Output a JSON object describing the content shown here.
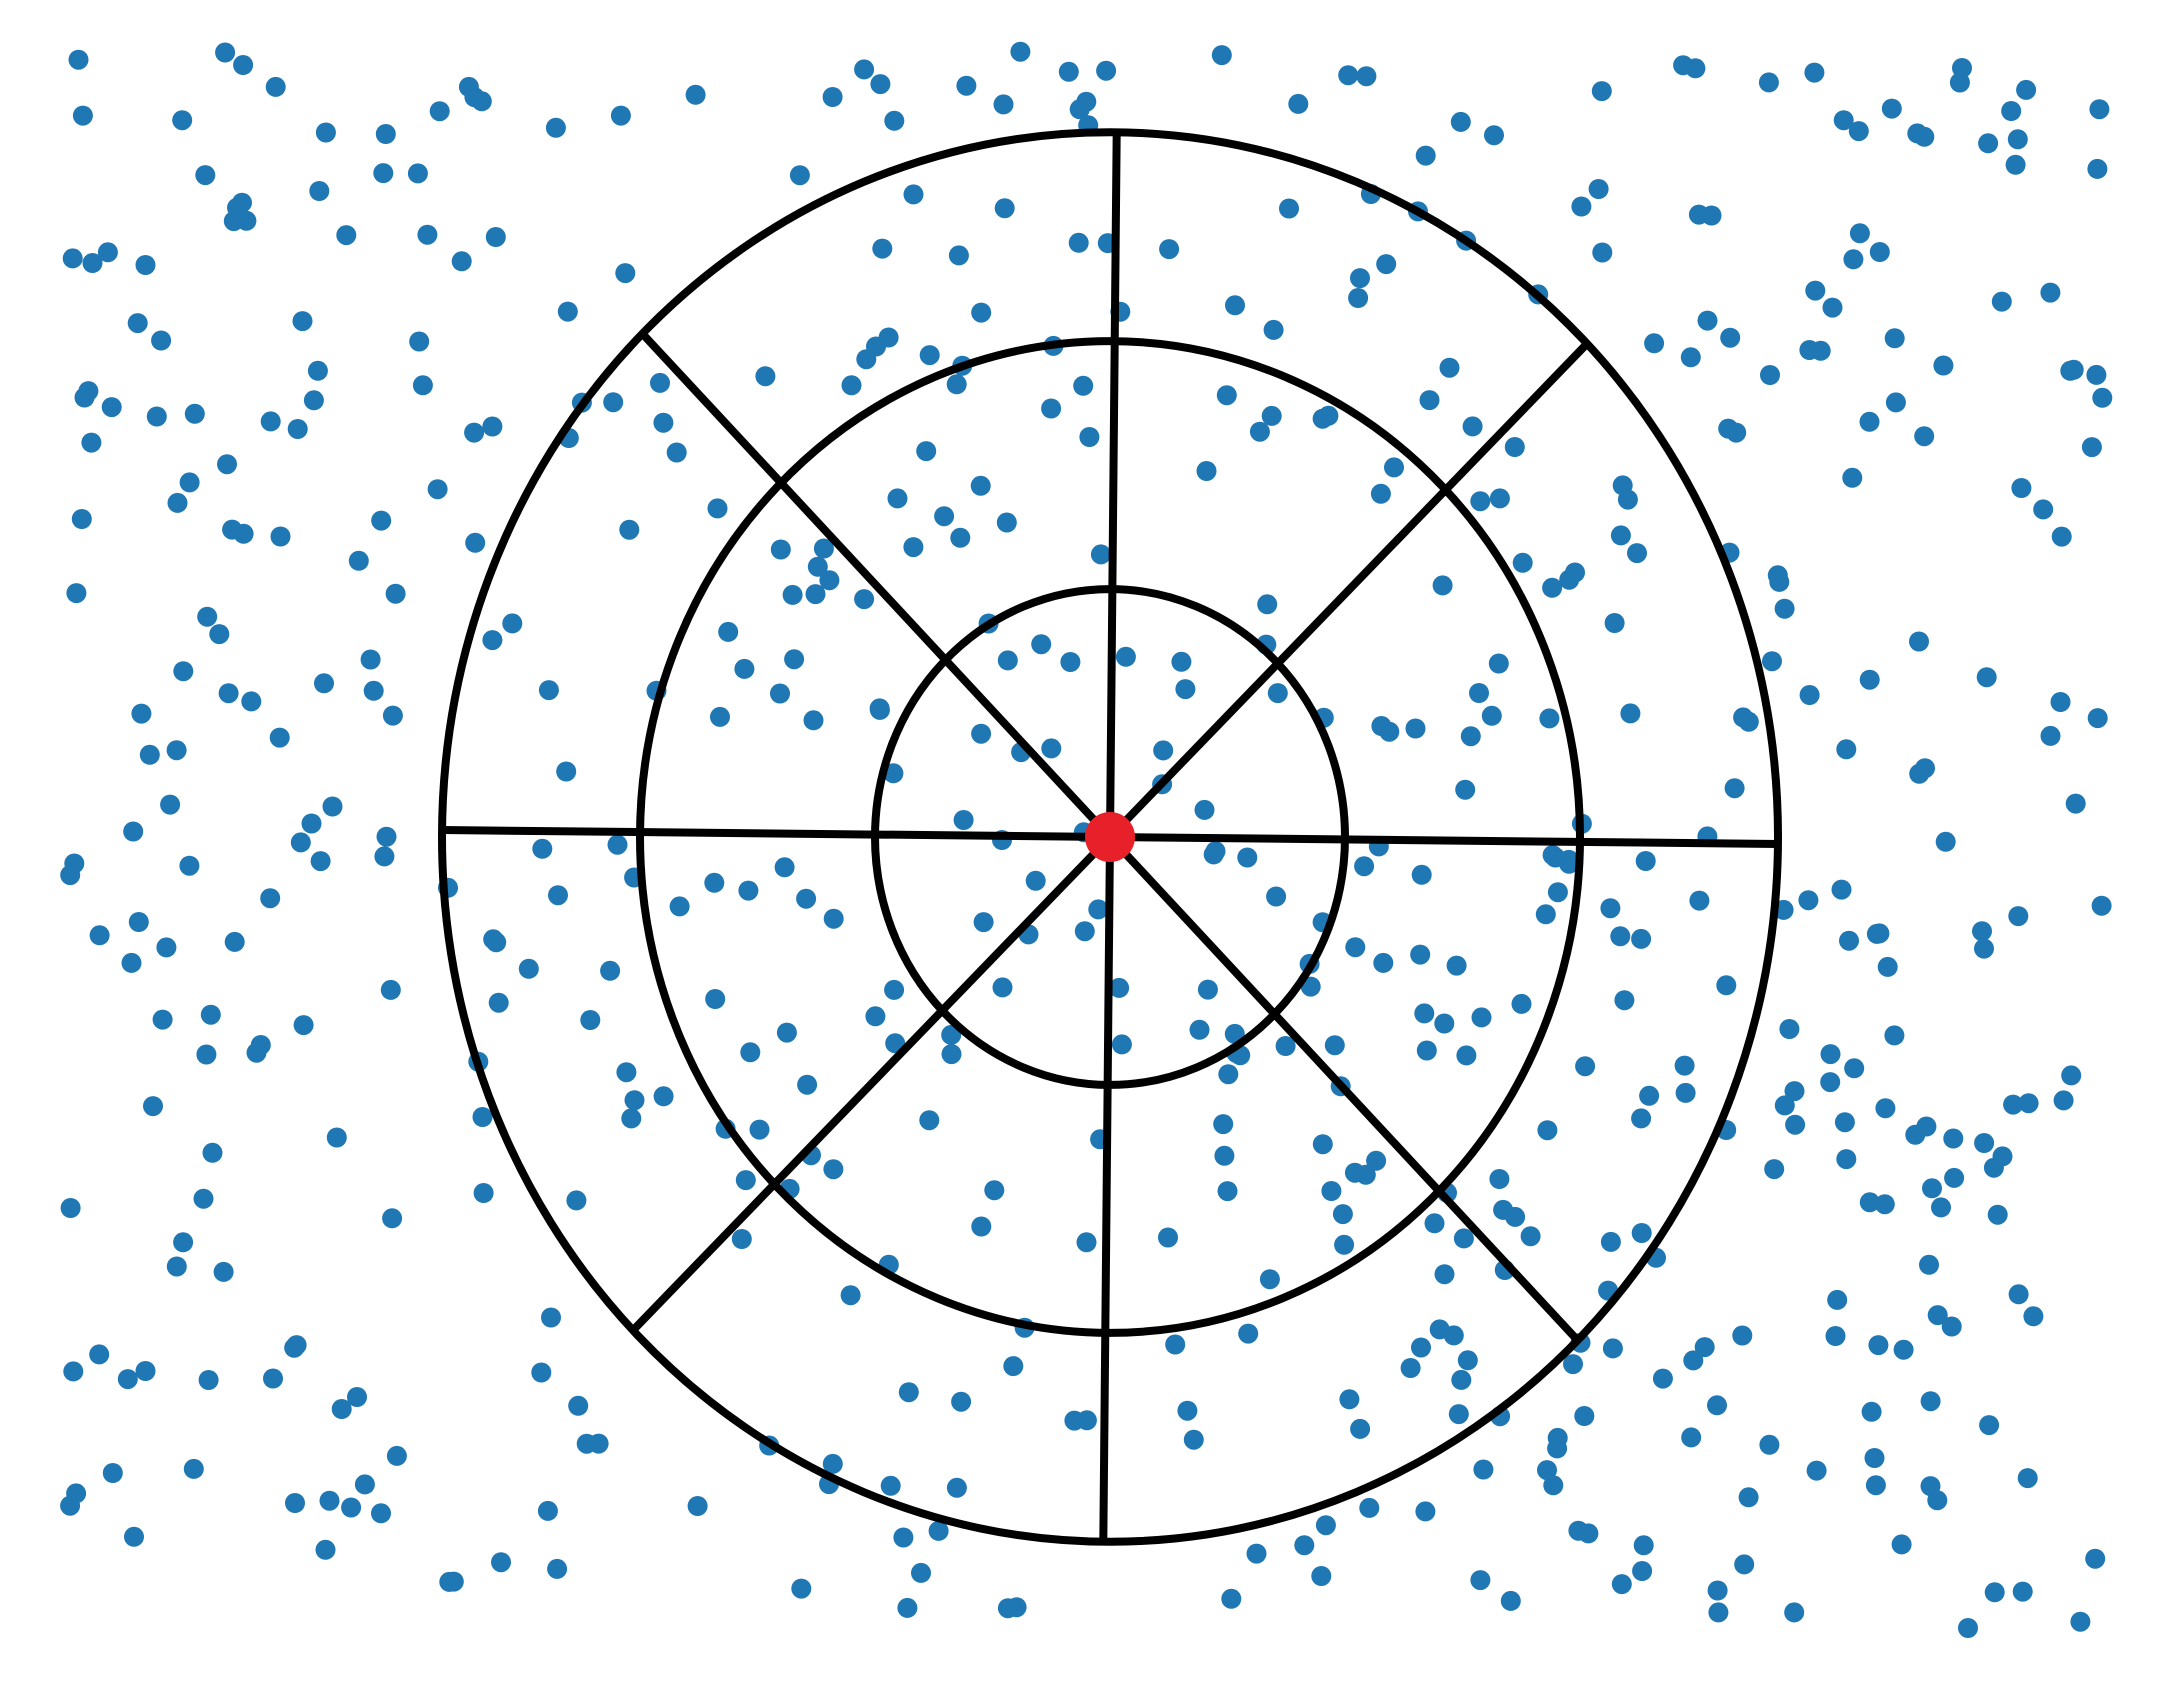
{
  "colors": {
    "background": "#ffffff",
    "point": "#1f77b4",
    "center": "#e8202a",
    "lines": "#000000"
  },
  "diagram": {
    "description_shown_text": "",
    "ring_count": 3,
    "sector_count": 8,
    "scatter_point_count": 620
  }
}
